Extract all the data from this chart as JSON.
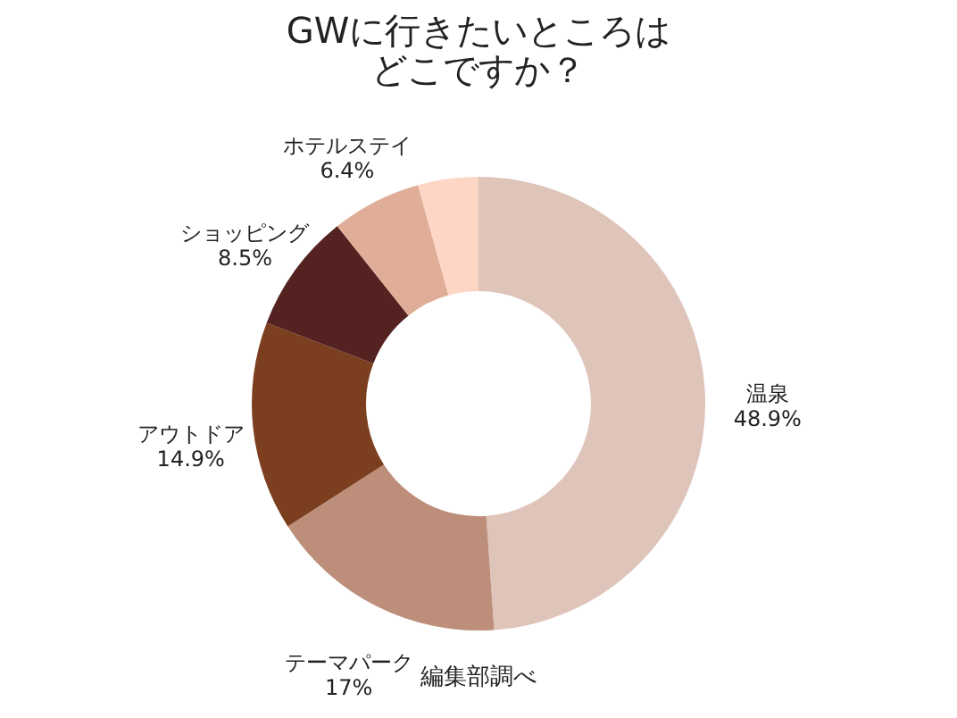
{
  "chart_data": {
    "type": "donut",
    "title": "GWに行きたいところはどこですか？",
    "categories": [
      "温泉",
      "テーマパーク",
      "アウトドア",
      "ショッピング",
      "ホテルステイ",
      null
    ],
    "values": [
      48.9,
      17,
      14.9,
      8.5,
      6.4,
      4.3
    ],
    "value_labels": [
      "48.9%",
      "17%",
      "14.9%",
      "8.5%",
      "6.4%",
      null
    ],
    "colors": [
      "#dfc4ba",
      "#bd8f7b",
      "#7b3f20",
      "#532221",
      "#e0ae98",
      "#fdd6c5"
    ],
    "legend": false,
    "annotations": [
      "編集部調べ"
    ]
  }
}
